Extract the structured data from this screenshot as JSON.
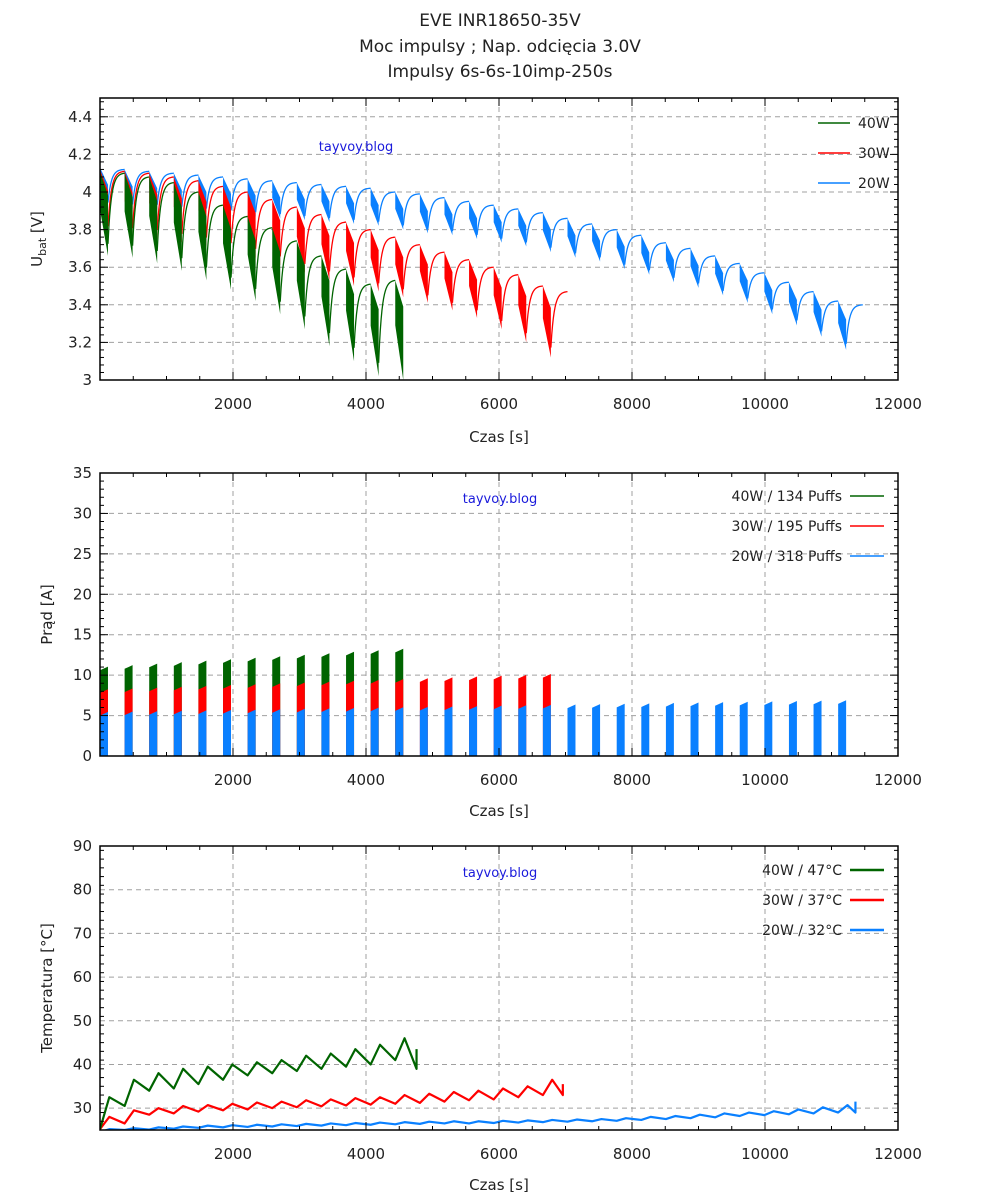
{
  "title_lines": [
    "EVE INR18650-35V",
    "Moc impulsy ; Nap. odcięcia 3.0V",
    "Impulsy 6s-6s-10imp-250s"
  ],
  "watermark": "tayvoy.blog",
  "colors": {
    "40W": "#006400",
    "30W": "#ff0000",
    "20W": "#0a80ff",
    "grid": "#a0a0a0",
    "watermark": "#1a1adb"
  },
  "chart_data": [
    {
      "type": "line",
      "id": "voltage",
      "title": "",
      "xlabel": "Czas [s]",
      "ylabel": "U_bat [V]",
      "ylabel_main": "U",
      "ylabel_sub": "bat",
      "ylabel_unit": " [V]",
      "xlim": [
        0,
        12000
      ],
      "ylim": [
        3.0,
        4.5
      ],
      "xticks": [
        2000,
        4000,
        6000,
        8000,
        10000,
        12000
      ],
      "yticks": [
        3,
        3.2,
        3.4,
        3.6,
        3.8,
        4,
        4.2,
        4.4
      ],
      "ytick_labels": [
        "3",
        "3.2",
        "3.4",
        "3.6",
        "3.8",
        "4",
        "4.2",
        "4.4"
      ],
      "grid": true,
      "legend_position": "top-right",
      "series": [
        {
          "name": "40W",
          "end_time": 4760,
          "rest_start": [
            4.11,
            4.1,
            4.08,
            4.05,
            4.0,
            3.93,
            3.87,
            3.81,
            3.74,
            3.66,
            3.59,
            3.51,
            3.53
          ],
          "pulse_min": [
            3.66,
            3.65,
            3.62,
            3.58,
            3.53,
            3.48,
            3.42,
            3.35,
            3.27,
            3.18,
            3.1,
            3.02,
            3.0
          ]
        },
        {
          "name": "30W",
          "end_time": 6960,
          "rest_start": [
            4.12,
            4.11,
            4.1,
            4.08,
            4.06,
            4.03,
            4.0,
            3.96,
            3.92,
            3.88,
            3.84,
            3.8,
            3.76,
            3.72,
            3.68,
            3.64,
            3.6,
            3.56,
            3.5,
            3.47
          ],
          "pulse_min": [
            3.77,
            3.76,
            3.75,
            3.73,
            3.71,
            3.68,
            3.65,
            3.61,
            3.57,
            3.53,
            3.5,
            3.47,
            3.44,
            3.41,
            3.37,
            3.33,
            3.27,
            3.2,
            3.12,
            3.0
          ]
        },
        {
          "name": "20W",
          "end_time": 11360,
          "rest_start": [
            4.13,
            4.12,
            4.11,
            4.1,
            4.09,
            4.08,
            4.07,
            4.06,
            4.05,
            4.04,
            4.03,
            4.02,
            4.0,
            3.99,
            3.97,
            3.95,
            3.93,
            3.91,
            3.89,
            3.86,
            3.83,
            3.8,
            3.77,
            3.73,
            3.7,
            3.66,
            3.62,
            3.57,
            3.52,
            3.47,
            3.42,
            3.4
          ],
          "pulse_min": [
            3.92,
            3.91,
            3.91,
            3.9,
            3.89,
            3.88,
            3.87,
            3.86,
            3.85,
            3.84,
            3.83,
            3.82,
            3.8,
            3.78,
            3.77,
            3.75,
            3.73,
            3.71,
            3.68,
            3.65,
            3.63,
            3.59,
            3.56,
            3.52,
            3.49,
            3.45,
            3.41,
            3.35,
            3.29,
            3.23,
            3.16,
            3.0
          ]
        }
      ]
    },
    {
      "type": "bar",
      "id": "current",
      "title": "",
      "xlabel": "Czas [s]",
      "ylabel": "Prąd [A]",
      "xlim": [
        0,
        12000
      ],
      "ylim": [
        0,
        35
      ],
      "xticks": [
        2000,
        4000,
        6000,
        8000,
        10000,
        12000
      ],
      "yticks": [
        0,
        5,
        10,
        15,
        20,
        25,
        30,
        35
      ],
      "grid": true,
      "legend_position": "top-right",
      "series": [
        {
          "name": "40W",
          "legend": "40W  /  134 Puffs",
          "puffs": 134,
          "end_time": 4760,
          "current_start": 10.8,
          "current_end": 13.2
        },
        {
          "name": "30W",
          "legend": "30W  /  195 Puffs",
          "puffs": 195,
          "end_time": 6960,
          "current_start": 8.0,
          "current_end": 10.0
        },
        {
          "name": "20W",
          "legend": "20W  /  318 Puffs",
          "puffs": 318,
          "end_time": 11360,
          "current_start": 5.2,
          "current_end": 6.7
        }
      ]
    },
    {
      "type": "line",
      "id": "temperature",
      "title": "",
      "xlabel": "Czas [s]",
      "ylabel": "Temperatura [°C]",
      "xlim": [
        0,
        12000
      ],
      "ylim": [
        25,
        90
      ],
      "xticks": [
        2000,
        4000,
        6000,
        8000,
        10000,
        12000
      ],
      "yticks": [
        30,
        40,
        50,
        60,
        70,
        80,
        90
      ],
      "grid": true,
      "legend_position": "top-right",
      "series": [
        {
          "name": "40W",
          "legend": "40W / 47°C",
          "max_temp": 47,
          "end_time": 4760,
          "peaks": [
            32.5,
            36.5,
            38.0,
            39.0,
            39.5,
            40.0,
            40.5,
            41.0,
            42.0,
            42.5,
            43.5,
            44.5,
            46.0,
            43.5
          ],
          "troughs": [
            30.5,
            34.0,
            34.5,
            35.5,
            36.5,
            37.5,
            38.0,
            38.5,
            39.0,
            39.5,
            40.0,
            41.0,
            39.0
          ]
        },
        {
          "name": "30W",
          "legend": "30W / 37°C",
          "max_temp": 37,
          "end_time": 6960,
          "peaks": [
            28.0,
            29.5,
            30.0,
            30.5,
            30.7,
            31.0,
            31.3,
            31.5,
            31.8,
            32.0,
            32.3,
            32.5,
            33.0,
            33.3,
            33.7,
            34.0,
            34.5,
            35.0,
            36.5,
            35.5
          ],
          "troughs": [
            26.5,
            28.5,
            28.8,
            29.2,
            29.5,
            29.7,
            30.0,
            30.2,
            30.4,
            30.6,
            30.8,
            31.0,
            31.2,
            31.5,
            31.8,
            32.0,
            32.5,
            33.0,
            33.0
          ]
        },
        {
          "name": "20W",
          "legend": "20W / 32°C",
          "max_temp": 32,
          "end_time": 11360,
          "peaks": [
            25.2,
            25.4,
            25.6,
            25.8,
            26.0,
            26.1,
            26.2,
            26.3,
            26.4,
            26.5,
            26.6,
            26.7,
            26.8,
            26.9,
            27.0,
            27.0,
            27.1,
            27.2,
            27.3,
            27.4,
            27.5,
            27.7,
            28.0,
            28.2,
            28.5,
            28.8,
            29.0,
            29.3,
            29.7,
            30.2,
            30.7,
            31.5
          ],
          "troughs": [
            25.0,
            25.1,
            25.3,
            25.5,
            25.6,
            25.7,
            25.8,
            25.9,
            26.0,
            26.1,
            26.2,
            26.3,
            26.4,
            26.5,
            26.5,
            26.6,
            26.7,
            26.8,
            26.9,
            27.0,
            27.1,
            27.3,
            27.5,
            27.7,
            27.9,
            28.2,
            28.4,
            28.6,
            28.8,
            29.0,
            29.0
          ]
        }
      ]
    }
  ]
}
